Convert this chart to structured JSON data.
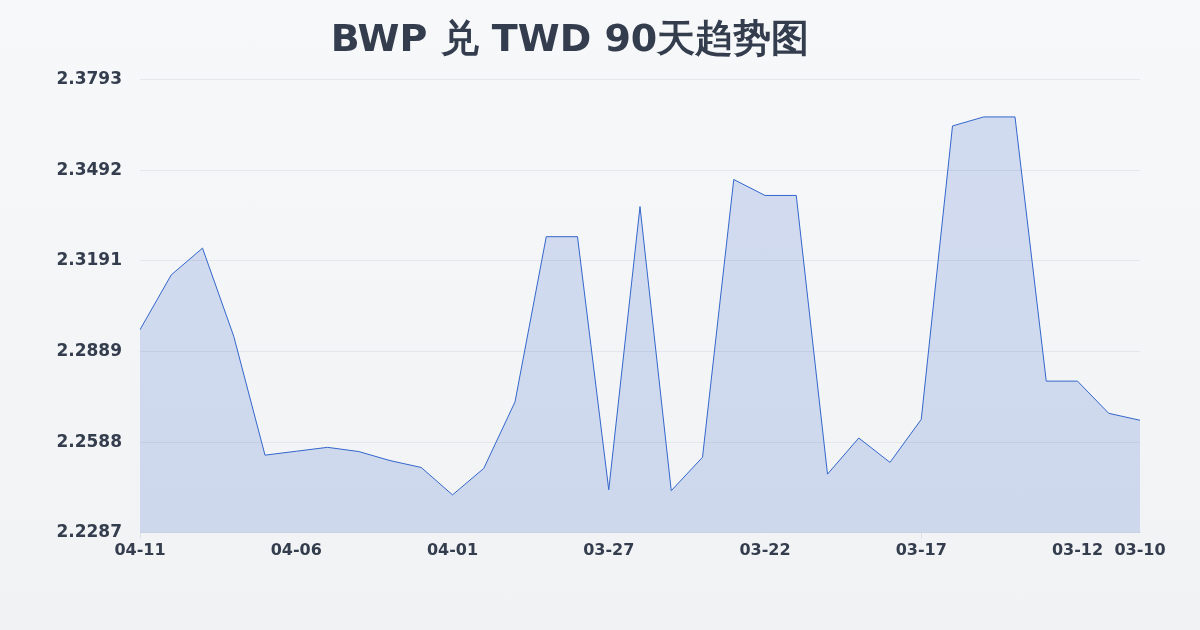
{
  "chart_data": {
    "type": "area",
    "title": "BWP 兑 TWD 90天趋势图",
    "categories": [
      "04-11",
      null,
      null,
      null,
      null,
      "04-06",
      null,
      null,
      null,
      null,
      "04-01",
      null,
      null,
      null,
      null,
      "03-27",
      null,
      null,
      null,
      null,
      "03-22",
      null,
      null,
      null,
      null,
      "03-17",
      null,
      null,
      null,
      null,
      "03-12",
      null,
      "03-10"
    ],
    "values": [
      2.2962,
      2.3144,
      2.3233,
      2.294,
      2.2545,
      2.2558,
      2.2571,
      2.2557,
      2.2527,
      2.2504,
      2.2413,
      2.2501,
      2.2722,
      2.3271,
      2.3271,
      2.243,
      2.3371,
      2.2427,
      2.2538,
      2.3461,
      2.3408,
      2.3408,
      2.2482,
      2.2602,
      2.2521,
      2.2664,
      2.3639,
      2.3669,
      2.3669,
      2.2791,
      2.2791,
      2.2684,
      2.2661
    ],
    "color": "#3366cc",
    "ylim": [
      2.2287,
      2.3793
    ],
    "yticks": [
      2.2287,
      2.2588,
      2.2889,
      2.3191,
      2.3492,
      2.3793
    ],
    "grid": "y",
    "legend": false,
    "marker": "none"
  }
}
